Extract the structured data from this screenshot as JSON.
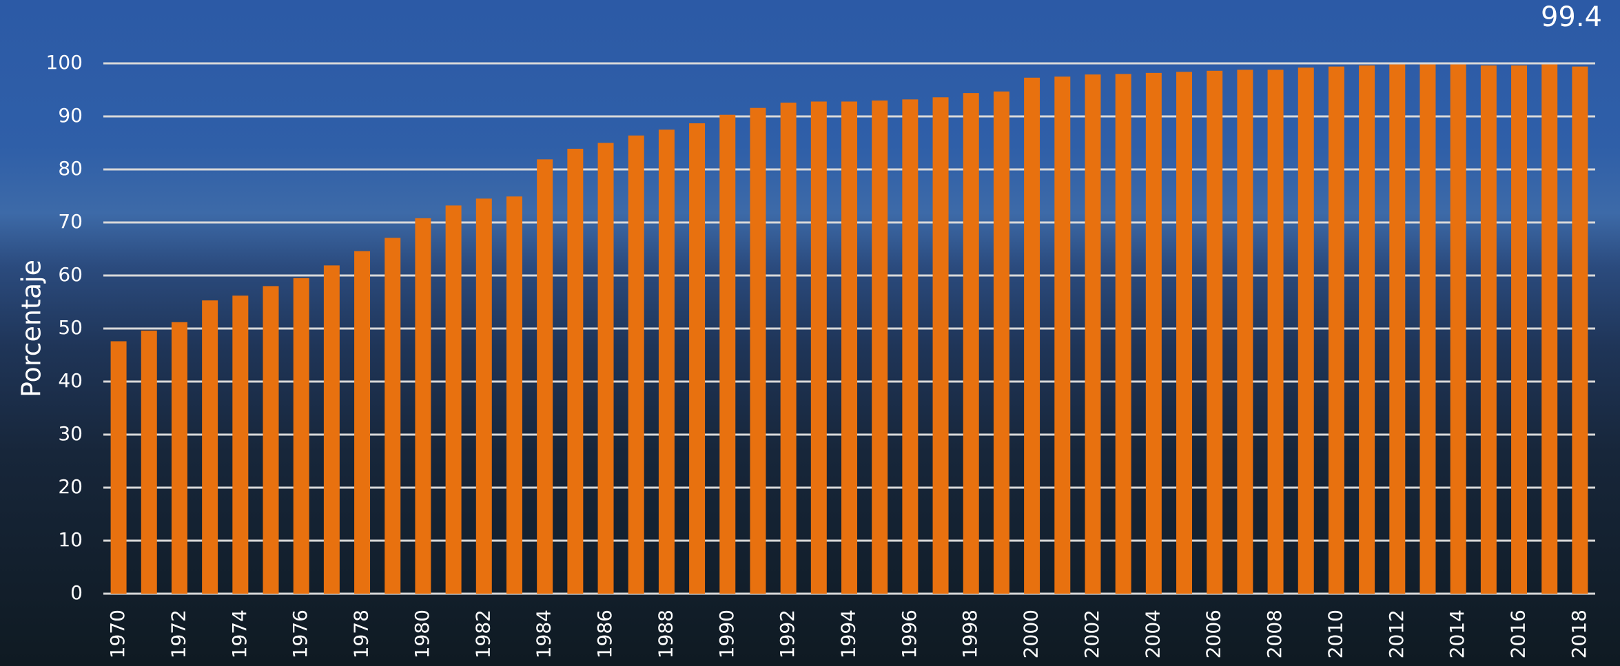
{
  "chart_data": {
    "type": "bar",
    "y_label": "Porcentaje",
    "categories": [
      "1970",
      null,
      "1972",
      null,
      "1974",
      null,
      "1976",
      null,
      "1978",
      null,
      "1980",
      null,
      "1982",
      null,
      "1984",
      null,
      "1986",
      null,
      "1988",
      null,
      "1990",
      null,
      "1992",
      null,
      "1994",
      null,
      "1996",
      null,
      "1998",
      null,
      "2000",
      null,
      "2002",
      null,
      "2004",
      null,
      "2006",
      null,
      "2008",
      null,
      "2010",
      null,
      "2012",
      null,
      "2014",
      null,
      "2016",
      null,
      "2018"
    ],
    "values": [
      47.6,
      49.6,
      51.2,
      55.3,
      56.2,
      58,
      59.5,
      61.9,
      64.6,
      67.1,
      70.8,
      73.2,
      74.5,
      74.9,
      81.9,
      83.9,
      85,
      86.4,
      87.5,
      88.7,
      90.3,
      91.6,
      92.6,
      92.8,
      92.8,
      93,
      93.2,
      93.6,
      94.4,
      94.7,
      97.3,
      97.5,
      97.9,
      98,
      98.2,
      98.4,
      98.6,
      98.8,
      98.8,
      99.2,
      99.4,
      99.6,
      99.8,
      99.8,
      99.8,
      99.6,
      99.6,
      99.8,
      99.4
    ],
    "color": "#e8710f",
    "ylim": [
      0,
      100
    ],
    "yticks": [
      0,
      10,
      20,
      30,
      40,
      50,
      60,
      70,
      80,
      90,
      100
    ],
    "grid": true,
    "labelled_index": 48
  }
}
